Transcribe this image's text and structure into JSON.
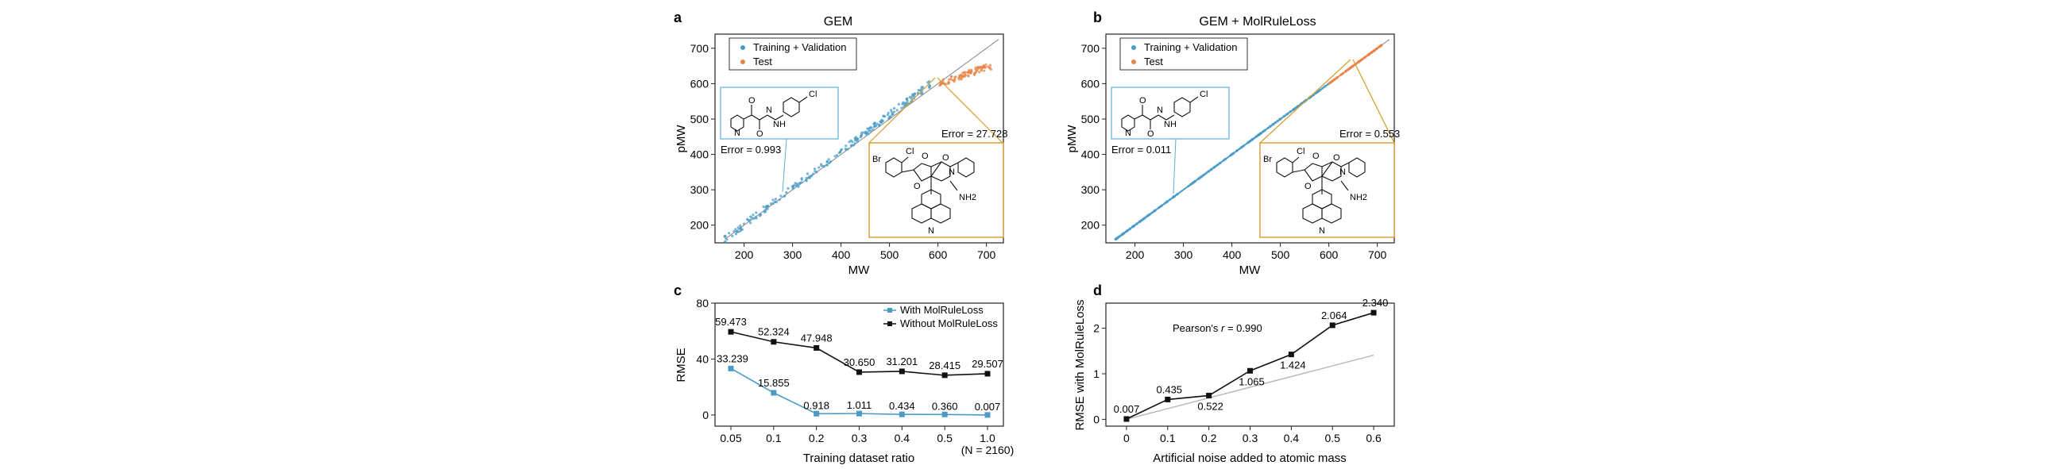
{
  "chart_data": [
    {
      "panel": "a",
      "type": "scatter",
      "title": "GEM",
      "xlabel": "MW",
      "ylabel": "pMW",
      "xlim": [
        140,
        735
      ],
      "ylim": [
        150,
        740
      ],
      "xticks": [
        200,
        300,
        400,
        500,
        600,
        700
      ],
      "yticks": [
        200,
        300,
        400,
        500,
        600,
        700
      ],
      "legend": [
        "Training + Validation",
        "Test"
      ],
      "series": [
        {
          "name": "Training + Validation",
          "color": "#4a9cc7",
          "x": [
            160,
            585
          ],
          "y": [
            160,
            600
          ],
          "spread": 10
        },
        {
          "name": "Test",
          "color": "#e8844a",
          "x": [
            600,
            710
          ],
          "y": [
            600,
            650
          ],
          "spread": 10
        }
      ],
      "identity_line": true,
      "annotations": [
        {
          "text": "Error = 0.993",
          "box": "#5aaed5",
          "target": [
            285,
            290
          ]
        },
        {
          "text": "Error = 27.728",
          "box": "#d89a2a",
          "target": [
            600,
            598
          ]
        }
      ],
      "molecule_labels": [
        "Cl",
        "O",
        "N",
        "H",
        "Br",
        "NH2"
      ]
    },
    {
      "panel": "b",
      "type": "scatter",
      "title": "GEM + MolRuleLoss",
      "xlabel": "MW",
      "ylabel": "pMW",
      "xlim": [
        140,
        735
      ],
      "ylim": [
        150,
        740
      ],
      "xticks": [
        200,
        300,
        400,
        500,
        600,
        700
      ],
      "yticks": [
        200,
        300,
        400,
        500,
        600,
        700
      ],
      "legend": [
        "Training + Validation",
        "Test"
      ],
      "series": [
        {
          "name": "Training + Validation",
          "color": "#4a9cc7",
          "x": [
            160,
            600
          ],
          "y": [
            160,
            600
          ],
          "spread": 0
        },
        {
          "name": "Test",
          "color": "#e8844a",
          "x": [
            600,
            710
          ],
          "y": [
            600,
            710
          ],
          "spread": 0
        }
      ],
      "identity_line": true,
      "annotations": [
        {
          "text": "Error = 0.011",
          "box": "#5aaed5",
          "target": [
            285,
            285
          ]
        },
        {
          "text": "Error = 0.553",
          "box": "#d89a2a",
          "target": [
            655,
            655
          ]
        }
      ],
      "molecule_labels": [
        "Cl",
        "O",
        "N",
        "H",
        "Br",
        "NH2"
      ]
    },
    {
      "panel": "c",
      "type": "line",
      "xlabel": "Training dataset ratio",
      "ylabel": "RMSE",
      "categories": [
        "0.05",
        "0.1",
        "0.2",
        "0.3",
        "0.4",
        "0.5",
        "1.0"
      ],
      "category_sublabel": "(N = 2160)",
      "ylim": [
        -8,
        80
      ],
      "yticks": [
        0,
        40,
        80
      ],
      "series": [
        {
          "name": "With MolRuleLoss",
          "color": "#4a9cc7",
          "values": [
            33.239,
            15.855,
            0.918,
            1.011,
            0.434,
            0.36,
            0.007
          ],
          "labels": [
            "33.239",
            "15.855",
            "0.918",
            "1.011",
            "0.434",
            "0.360",
            "0.007"
          ]
        },
        {
          "name": "Without MolRuleLoss",
          "color": "#111111",
          "values": [
            59.473,
            52.324,
            47.948,
            30.65,
            31.201,
            28.415,
            29.507
          ],
          "labels": [
            "59.473",
            "52.324",
            "47.948",
            "30.650",
            "31.201",
            "28.415",
            "29.507"
          ]
        }
      ]
    },
    {
      "panel": "d",
      "type": "line",
      "xlabel": "Artificial noise added to atomic mass",
      "ylabel": "RMSE with MolRuleLoss",
      "x": [
        0,
        0.1,
        0.2,
        0.3,
        0.4,
        0.5,
        0.6
      ],
      "xticks": [
        "0",
        "0.1",
        "0.2",
        "0.3",
        "0.4",
        "0.5",
        "0.6"
      ],
      "xlim": [
        -0.05,
        0.65
      ],
      "ylim": [
        -0.15,
        2.55
      ],
      "yticks": [
        0,
        1,
        2
      ],
      "series": [
        {
          "name": "RMSE",
          "color": "#111111",
          "values": [
            0.007,
            0.435,
            0.522,
            1.065,
            1.424,
            2.064,
            2.34
          ],
          "labels": [
            "0.007",
            "0.435",
            "0.522",
            "1.065",
            "1.424",
            "2.064",
            "2.340"
          ]
        }
      ],
      "fit_line": [
        0.0,
        2.18
      ],
      "annotation_prefix": "Pearson's ",
      "annotation_var": "r",
      "annotation_value": " = 0.990"
    }
  ]
}
